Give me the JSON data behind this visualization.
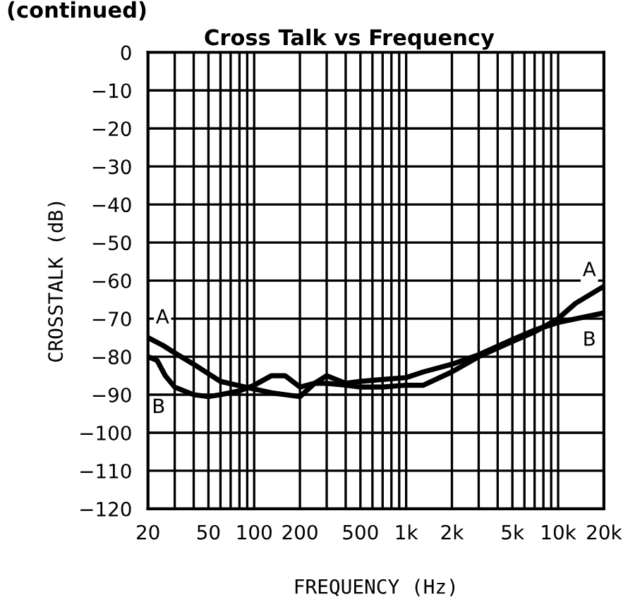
{
  "chart_data": {
    "type": "line",
    "title": "Cross Talk vs Frequency",
    "xlabel": "FREQUENCY (Hz)",
    "ylabel": "CROSSTALK (dB)",
    "annotations": [
      "(continued)"
    ],
    "log": "x",
    "grid": true,
    "legend": false,
    "marker": "none",
    "line_style": "solid",
    "xlim": [
      20,
      20000
    ],
    "ylim": [
      -120,
      0
    ],
    "xticks": [
      20,
      {
        "value": 30,
        "label": null
      },
      {
        "value": 40,
        "label": null
      },
      50,
      {
        "value": 60,
        "label": null
      },
      {
        "value": 70,
        "label": null
      },
      {
        "value": 80,
        "label": null
      },
      {
        "value": 90,
        "label": null
      },
      100,
      200,
      {
        "value": 300,
        "label": null
      },
      {
        "value": 400,
        "label": null
      },
      500,
      {
        "value": 600,
        "label": null
      },
      {
        "value": 700,
        "label": null
      },
      {
        "value": 800,
        "label": null
      },
      {
        "value": 900,
        "label": null
      },
      {
        "value": 1000,
        "label": "1k"
      },
      {
        "value": 2000,
        "label": "2k"
      },
      {
        "value": 3000,
        "label": null
      },
      {
        "value": 4000,
        "label": null
      },
      {
        "value": 5000,
        "label": "5k"
      },
      {
        "value": 6000,
        "label": null
      },
      {
        "value": 7000,
        "label": null
      },
      {
        "value": 8000,
        "label": null
      },
      {
        "value": 9000,
        "label": null
      },
      {
        "value": 10000,
        "label": "10k"
      },
      {
        "value": 20000,
        "label": "20k"
      }
    ],
    "yticks": [
      -120,
      -110,
      -100,
      -90,
      -80,
      -70,
      -60,
      -50,
      -40,
      -30,
      -20,
      -10,
      0
    ],
    "series": [
      {
        "name": "A",
        "color": "#000000",
        "x": [
          20,
          25,
          30,
          40,
          50,
          60,
          77,
          100,
          130,
          160,
          200,
          250,
          300,
          400,
          500,
          700,
          1000,
          1300,
          2000,
          3000,
          5000,
          7000,
          10000,
          13000,
          20000
        ],
        "values": [
          -75,
          -77,
          -79,
          -82,
          -84.5,
          -86.5,
          -87.5,
          -88.5,
          -89.5,
          -90,
          -90.5,
          -87,
          -87,
          -87.5,
          -88,
          -88,
          -87.5,
          -87.5,
          -84,
          -80,
          -76,
          -73.5,
          -70,
          -66,
          -61.5
        ]
      },
      {
        "name": "B",
        "color": "#000000",
        "x": [
          20,
          23,
          26,
          30,
          40,
          50,
          60,
          80,
          100,
          130,
          160,
          200,
          250,
          300,
          400,
          500,
          700,
          1000,
          1300,
          2000,
          3000,
          5000,
          7000,
          10000,
          20000
        ],
        "values": [
          -80,
          -81,
          -85,
          -88,
          -90,
          -90.5,
          -90,
          -89,
          -87.5,
          -85,
          -85,
          -88,
          -87,
          -85,
          -87,
          -86.5,
          -86,
          -85.5,
          -84,
          -82,
          -79.5,
          -75.5,
          -73,
          -71,
          -68.5
        ]
      }
    ]
  }
}
